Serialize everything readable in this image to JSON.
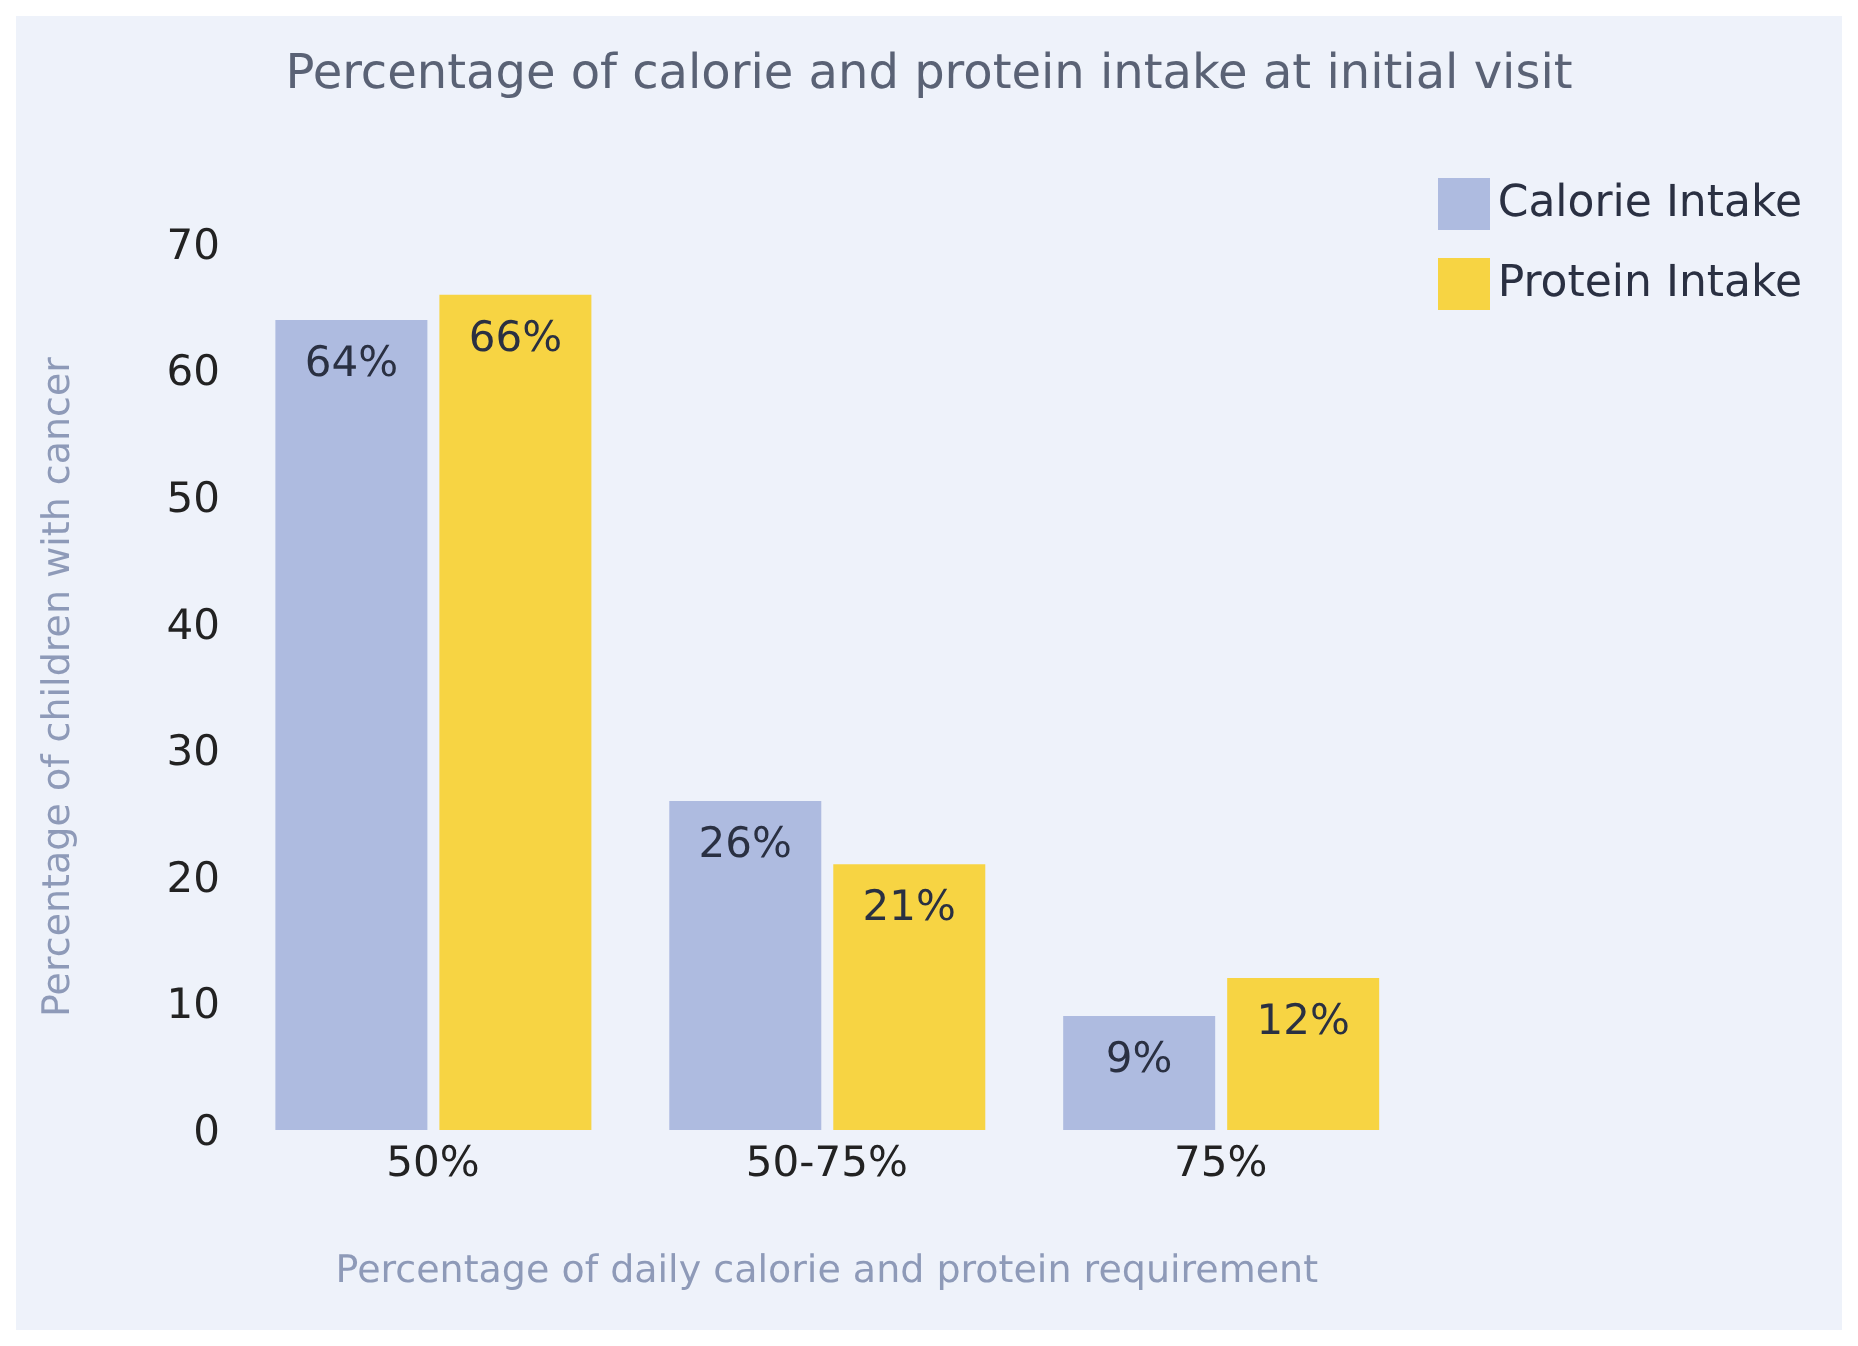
{
  "chart_data": {
    "type": "bar",
    "title": "Percentage of calorie and protein intake at initial visit",
    "xlabel": "Percentage of daily calorie and protein requirement",
    "ylabel": "Percentage of children with cancer",
    "categories": [
      "50%",
      "50-75%",
      "75%"
    ],
    "series": [
      {
        "name": "Calorie Intake",
        "color": "#aebbe0",
        "values": [
          64,
          26,
          9
        ],
        "value_labels": [
          "64%",
          "26%",
          "9%"
        ]
      },
      {
        "name": "Protein Intake",
        "color": "#f7d443",
        "values": [
          66,
          21,
          12
        ],
        "value_labels": [
          "66%",
          "21%",
          "12%"
        ]
      }
    ],
    "ylim": [
      0,
      70
    ],
    "yticks": [
      0,
      10,
      20,
      30,
      40,
      50,
      60,
      70
    ],
    "grid": false,
    "legend": "top right"
  }
}
